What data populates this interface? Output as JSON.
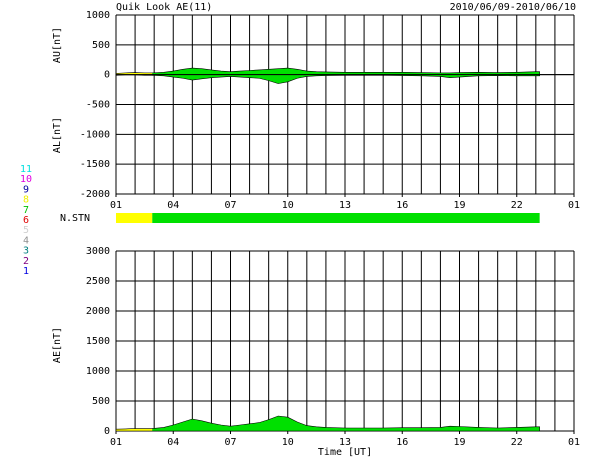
{
  "header": {
    "title": "Quik Look AE(11)",
    "date": "2010/06/09-2010/06/10"
  },
  "station_legend": [
    {
      "label": "11",
      "color": "#00e0e0"
    },
    {
      "label": "10",
      "color": "#e000e0"
    },
    {
      "label": "9",
      "color": "#0000a0"
    },
    {
      "label": "8",
      "color": "#f0f000"
    },
    {
      "label": "7",
      "color": "#00c000"
    },
    {
      "label": "6",
      "color": "#e00000"
    },
    {
      "label": "5",
      "color": "#d0d0d0"
    },
    {
      "label": "4",
      "color": "#909090"
    },
    {
      "label": "3",
      "color": "#008080"
    },
    {
      "label": "2",
      "color": "#800080"
    },
    {
      "label": "1",
      "color": "#0000e0"
    }
  ],
  "station_bar": {
    "label": "N.STN",
    "segments": [
      {
        "start": 0,
        "end": 1.9,
        "color": "#ffff00"
      },
      {
        "start": 1.9,
        "end": 22.2,
        "color": "#00e000"
      }
    ]
  },
  "chart_data": [
    {
      "type": "area",
      "ylabels": [
        "AU[nT]",
        "AL[nT]"
      ],
      "x": [
        0,
        0.5,
        1,
        1.5,
        1.9,
        2.5,
        3,
        3.5,
        4,
        4.5,
        5,
        5.5,
        6,
        6.5,
        7,
        7.5,
        8,
        8.5,
        9,
        9.5,
        10,
        10.5,
        11,
        12,
        13,
        14,
        15,
        16,
        17,
        17.5,
        18,
        19,
        20,
        21,
        22,
        22.2
      ],
      "series": [
        {
          "name": "AU",
          "values": [
            20,
            30,
            35,
            30,
            30,
            40,
            60,
            90,
            110,
            100,
            80,
            60,
            50,
            60,
            70,
            80,
            90,
            100,
            110,
            90,
            60,
            50,
            45,
            40,
            40,
            40,
            40,
            35,
            30,
            30,
            35,
            40,
            35,
            40,
            50,
            50
          ]
        },
        {
          "name": "AL",
          "values": [
            -10,
            -5,
            -5,
            -10,
            -10,
            -20,
            -40,
            -60,
            -90,
            -70,
            -50,
            -40,
            -30,
            -40,
            -50,
            -60,
            -100,
            -150,
            -120,
            -60,
            -30,
            -20,
            -15,
            -10,
            -10,
            -10,
            -15,
            -20,
            -30,
            -50,
            -40,
            -20,
            -15,
            -20,
            -20,
            -20
          ]
        }
      ],
      "xlim": [
        0,
        24
      ],
      "xticks": [
        {
          "value": 0,
          "label": "01"
        },
        {
          "value": 3,
          "label": "04"
        },
        {
          "value": 6,
          "label": "07"
        },
        {
          "value": 9,
          "label": "10"
        },
        {
          "value": 12,
          "label": "13"
        },
        {
          "value": 15,
          "label": "16"
        },
        {
          "value": 18,
          "label": "19"
        },
        {
          "value": 21,
          "label": "22"
        },
        {
          "value": 24,
          "label": "01"
        }
      ],
      "xgrid": [
        0,
        1,
        2,
        3,
        4,
        5,
        6,
        7,
        8,
        9,
        10,
        11,
        12,
        13,
        14,
        15,
        16,
        17,
        18,
        19,
        20,
        21,
        22,
        23,
        24
      ],
      "ylim": [
        -2000,
        1000
      ],
      "yticks": [
        1000,
        500,
        0,
        -500,
        -1000,
        -1500,
        -2000
      ]
    },
    {
      "type": "area",
      "ylabel": "AE[nT]",
      "xlabel": "Time [UT]",
      "x": [
        0,
        0.5,
        1,
        1.5,
        1.9,
        2.5,
        3,
        3.5,
        4,
        4.5,
        5,
        5.5,
        6,
        6.5,
        7,
        7.5,
        8,
        8.5,
        9,
        9.5,
        10,
        10.5,
        11,
        12,
        13,
        14,
        15,
        16,
        17,
        17.5,
        18,
        19,
        20,
        21,
        22,
        22.2
      ],
      "series": [
        {
          "name": "AE",
          "values": [
            30,
            35,
            40,
            40,
            40,
            60,
            100,
            150,
            200,
            170,
            130,
            100,
            80,
            100,
            120,
            140,
            190,
            250,
            230,
            150,
            90,
            70,
            60,
            50,
            50,
            50,
            55,
            55,
            60,
            80,
            75,
            60,
            50,
            60,
            70,
            70
          ]
        }
      ],
      "xlim": [
        0,
        24
      ],
      "xticks": [
        {
          "value": 0,
          "label": "01"
        },
        {
          "value": 3,
          "label": "04"
        },
        {
          "value": 6,
          "label": "07"
        },
        {
          "value": 9,
          "label": "10"
        },
        {
          "value": 12,
          "label": "13"
        },
        {
          "value": 15,
          "label": "16"
        },
        {
          "value": 18,
          "label": "19"
        },
        {
          "value": 21,
          "label": "22"
        },
        {
          "value": 24,
          "label": "01"
        }
      ],
      "xgrid": [
        0,
        1,
        2,
        3,
        4,
        5,
        6,
        7,
        8,
        9,
        10,
        11,
        12,
        13,
        14,
        15,
        16,
        17,
        18,
        19,
        20,
        21,
        22,
        23,
        24
      ],
      "ylim": [
        0,
        3000
      ],
      "yticks": [
        3000,
        2500,
        2000,
        1500,
        1000,
        500,
        0
      ]
    }
  ]
}
